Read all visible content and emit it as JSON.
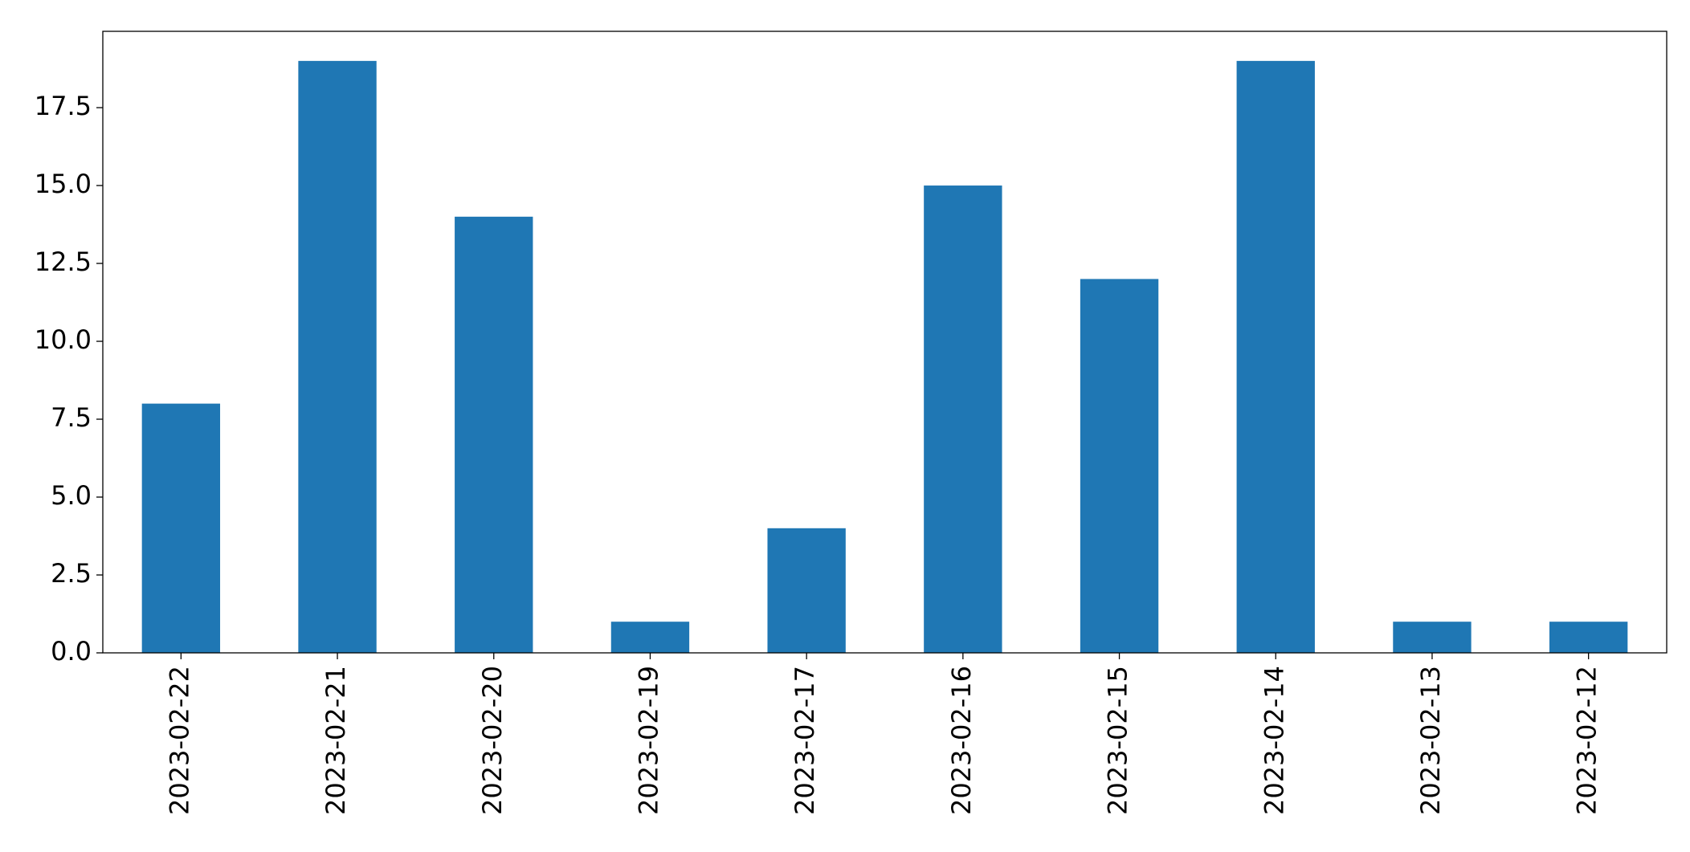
{
  "chart_data": {
    "type": "bar",
    "categories": [
      "2023-02-22",
      "2023-02-21",
      "2023-02-20",
      "2023-02-19",
      "2023-02-17",
      "2023-02-16",
      "2023-02-15",
      "2023-02-14",
      "2023-02-13",
      "2023-02-12"
    ],
    "values": [
      8,
      19,
      14,
      1,
      4,
      15,
      12,
      19,
      1,
      1
    ],
    "color": "#1f77b4",
    "ylim": [
      0,
      19.95
    ],
    "yticks": [
      {
        "value": 0,
        "label": "0.0"
      },
      2.5,
      {
        "value": 5,
        "label": "5.0"
      },
      7.5,
      {
        "value": 10,
        "label": "10.0"
      },
      12.5,
      {
        "value": 15,
        "label": "15.0"
      },
      17.5
    ],
    "grid": false
  }
}
